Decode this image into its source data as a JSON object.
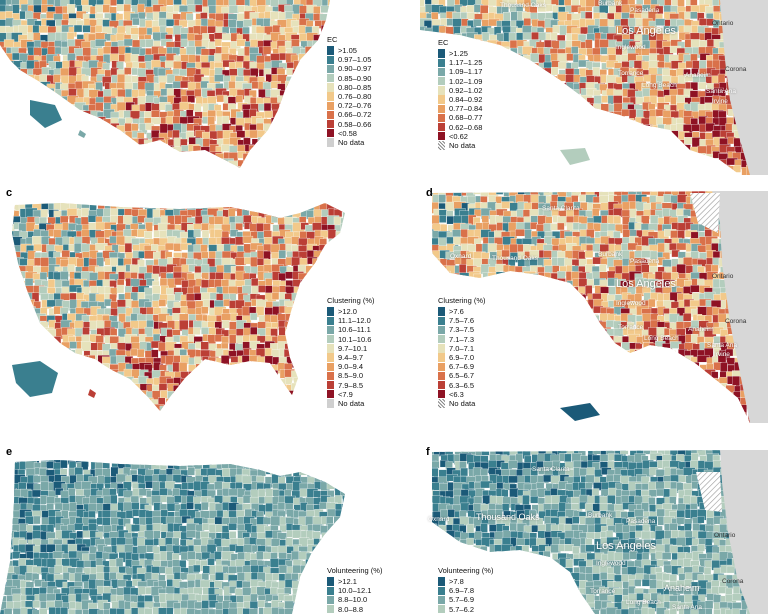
{
  "panels": [
    {
      "id": "a",
      "letter": "",
      "legend_title": "EC",
      "legend": [
        {
          "label": ">1.05",
          "color": "#1b5a78"
        },
        {
          "label": "0.97–1.05",
          "color": "#3a7f8f"
        },
        {
          "label": "0.90–0.97",
          "color": "#7aa8a8"
        },
        {
          "label": "0.85–0.90",
          "color": "#b3cdbd"
        },
        {
          "label": "0.80–0.85",
          "color": "#e6e2bb"
        },
        {
          "label": "0.76–0.80",
          "color": "#f2c98a"
        },
        {
          "label": "0.72–0.76",
          "color": "#e9a063"
        },
        {
          "label": "0.66–0.72",
          "color": "#d9714a"
        },
        {
          "label": "0.58–0.66",
          "color": "#bb3f36"
        },
        {
          "label": "<0.58",
          "color": "#8e1224"
        },
        {
          "label": "No data",
          "color": "#cfcfcf"
        }
      ]
    },
    {
      "id": "b",
      "letter": "",
      "legend_title": "EC",
      "legend": [
        {
          "label": ">1.25",
          "color": "#1b5a78"
        },
        {
          "label": "1.17–1.25",
          "color": "#3a7f8f"
        },
        {
          "label": "1.09–1.17",
          "color": "#7aa8a8"
        },
        {
          "label": "1.02–1.09",
          "color": "#b3cdbd"
        },
        {
          "label": "0.92–1.02",
          "color": "#e6e2bb"
        },
        {
          "label": "0.84–0.92",
          "color": "#f2c98a"
        },
        {
          "label": "0.77–0.84",
          "color": "#e9a063"
        },
        {
          "label": "0.68–0.77",
          "color": "#d9714a"
        },
        {
          "label": "0.62–0.68",
          "color": "#bb3f36"
        },
        {
          "label": "<0.62",
          "color": "#8e1224"
        },
        {
          "label": "No data",
          "color": "hatch"
        }
      ],
      "cities": [
        "Thousand Oaks",
        "Burbank",
        "Pasadena",
        "Ontario",
        "Los Angeles",
        "Inglewood",
        "Torrance",
        "Anaheim",
        "Long Beach",
        "Santa Ana",
        "Irvine",
        "Corona"
      ]
    },
    {
      "id": "c",
      "letter": "c",
      "legend_title": "Clustering (%)",
      "legend": [
        {
          "label": ">12.0",
          "color": "#1b5a78"
        },
        {
          "label": "11.1–12.0",
          "color": "#3a7f8f"
        },
        {
          "label": "10.6–11.1",
          "color": "#7aa8a8"
        },
        {
          "label": "10.1–10.6",
          "color": "#b3cdbd"
        },
        {
          "label": "9.7–10.1",
          "color": "#e6e2bb"
        },
        {
          "label": "9.4–9.7",
          "color": "#f2c98a"
        },
        {
          "label": "9.0–9.4",
          "color": "#e9a063"
        },
        {
          "label": "8.5–9.0",
          "color": "#d9714a"
        },
        {
          "label": "7.9–8.5",
          "color": "#bb3f36"
        },
        {
          "label": "<7.9",
          "color": "#8e1224"
        },
        {
          "label": "No data",
          "color": "#cfcfcf"
        }
      ]
    },
    {
      "id": "d",
      "letter": "d",
      "legend_title": "Clustering (%)",
      "legend": [
        {
          "label": ">7.6",
          "color": "#1b5a78"
        },
        {
          "label": "7.5–7.6",
          "color": "#3a7f8f"
        },
        {
          "label": "7.3–7.5",
          "color": "#7aa8a8"
        },
        {
          "label": "7.1–7.3",
          "color": "#b3cdbd"
        },
        {
          "label": "7.0–7.1",
          "color": "#e6e2bb"
        },
        {
          "label": "6.9–7.0",
          "color": "#f2c98a"
        },
        {
          "label": "6.7–6.9",
          "color": "#e9a063"
        },
        {
          "label": "6.5–6.7",
          "color": "#d9714a"
        },
        {
          "label": "6.3–6.5",
          "color": "#bb3f36"
        },
        {
          "label": "<6.3",
          "color": "#8e1224"
        },
        {
          "label": "No data",
          "color": "hatch"
        }
      ],
      "cities": [
        "Santa Clarita",
        "Oxnard",
        "Thousand Oaks",
        "Burbank",
        "Pasadena",
        "Ontario",
        "Los Angeles",
        "Inglewood",
        "Torrance",
        "Anaheim",
        "Long Beach",
        "Santa Ana",
        "Irvine",
        "Corona"
      ]
    },
    {
      "id": "e",
      "letter": "e",
      "legend_title": "Volunteering (%)",
      "legend": [
        {
          "label": ">12.1",
          "color": "#1b5a78"
        },
        {
          "label": "10.0–12.1",
          "color": "#3a7f8f"
        },
        {
          "label": "8.8–10.0",
          "color": "#7aa8a8"
        },
        {
          "label": "8.0–8.8",
          "color": "#b3cdbd"
        }
      ]
    },
    {
      "id": "f",
      "letter": "f",
      "legend_title": "Volunteering (%)",
      "legend": [
        {
          "label": ">7.8",
          "color": "#1b5a78"
        },
        {
          "label": "6.9–7.8",
          "color": "#3a7f8f"
        },
        {
          "label": "5.7–6.9",
          "color": "#7aa8a8"
        },
        {
          "label": "5.7–6.2",
          "color": "#b3cdbd"
        }
      ],
      "cities": [
        "Santa Clarita",
        "Oxnard",
        "Thousand Oaks",
        "Burbank",
        "Pasadena",
        "Ontario",
        "Los Angeles",
        "Inglewood",
        "Torrance",
        "Anaheim",
        "Long Beach",
        "Santa Ana",
        "Corona"
      ]
    }
  ]
}
